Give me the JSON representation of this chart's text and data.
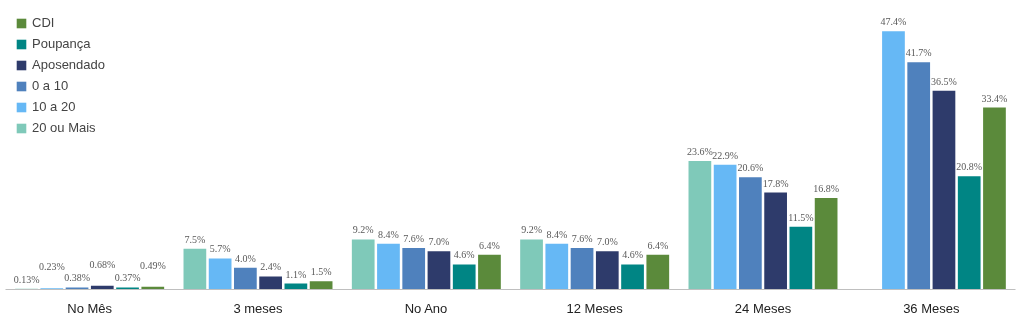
{
  "chart_data": {
    "type": "bar",
    "categories": [
      "No Mês",
      "3 meses",
      "No Ano",
      "12 Meses",
      "24 Meses",
      "36 Meses"
    ],
    "series": [
      {
        "name": "20 ou Mais",
        "color": "#7fc9b9",
        "values": [
          0.13,
          7.5,
          9.2,
          9.2,
          23.6,
          null
        ],
        "value_labels": [
          "0.13%",
          "7.5%",
          "9.2%",
          "9.2%",
          "23.6%",
          null
        ]
      },
      {
        "name": "10 a 20",
        "color": "#66b8f5",
        "values": [
          0.23,
          5.7,
          8.4,
          8.4,
          22.9,
          47.4
        ],
        "value_labels": [
          "0.23%",
          "5.7%",
          "8.4%",
          "8.4%",
          "22.9%",
          "47.4%"
        ]
      },
      {
        "name": "0 a 10",
        "color": "#4f81bd",
        "values": [
          0.38,
          4.0,
          7.6,
          7.6,
          20.6,
          41.7
        ],
        "value_labels": [
          "0.38%",
          "4.0%",
          "7.6%",
          "7.6%",
          "20.6%",
          "41.7%"
        ]
      },
      {
        "name": "Aposendado",
        "color": "#2e3b6b",
        "values": [
          0.68,
          2.4,
          7.0,
          7.0,
          17.8,
          36.5
        ],
        "value_labels": [
          "0.68%",
          "2.4%",
          "7.0%",
          "7.0%",
          "17.8%",
          "36.5%"
        ]
      },
      {
        "name": "Poupança",
        "color": "#008584",
        "values": [
          0.37,
          1.1,
          4.6,
          4.6,
          11.5,
          20.8
        ],
        "value_labels": [
          "0.37%",
          "1.1%",
          "4.6%",
          "4.6%",
          "11.5%",
          "20.8%"
        ]
      },
      {
        "name": "CDI",
        "color": "#5b8a3b",
        "values": [
          0.49,
          1.5,
          6.4,
          6.4,
          16.8,
          33.4
        ],
        "value_labels": [
          "0.49%",
          "1.5%",
          "6.4%",
          "6.4%",
          "16.8%",
          "33.4%"
        ]
      }
    ],
    "legend": "top left",
    "grid": false
  }
}
